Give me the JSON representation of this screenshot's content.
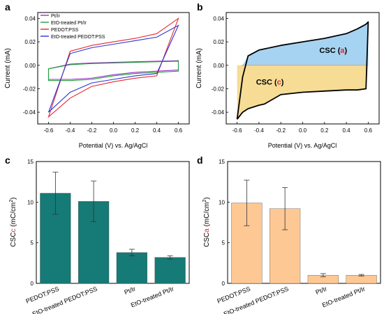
{
  "panels": [
    {
      "letter": "a"
    },
    {
      "letter": "b"
    },
    {
      "letter": "c"
    },
    {
      "letter": "d"
    }
  ],
  "colors": {
    "ptir": "#9b30c6",
    "eto_ptir": "#22a03a",
    "pedot": "#e8262b",
    "eto_pedot": "#2a35d8",
    "csc_anodic_fill": "#a6d3f2",
    "csc_cathodic_fill": "#f7dc95",
    "teal_bar": "#167a76",
    "peach_bar": "#fdc894",
    "red_letter": "#e8262b"
  },
  "chart_data": [
    {
      "type": "line",
      "panel": "a",
      "xlabel": "Potential (V) vs. Ag/AgCl",
      "ylabel": "Current (mA)",
      "xlim": [
        -0.7,
        0.7
      ],
      "ylim": [
        -0.05,
        0.045
      ],
      "xticks": [
        -0.6,
        -0.4,
        -0.2,
        0.0,
        0.2,
        0.4,
        0.6
      ],
      "xtick_labels": [
        "-0.6",
        "-0.4",
        "-0.2",
        "0.0",
        "0.2",
        "0.4",
        "0.6"
      ],
      "yticks": [
        -0.04,
        -0.02,
        0.0,
        0.02,
        0.04
      ],
      "ytick_labels": [
        "-0.04",
        "-0.02",
        "0.00",
        "0.02",
        "0.04"
      ],
      "legend_position": "top-left",
      "series": [
        {
          "name": "Pt/Ir",
          "color_key": "ptir",
          "forward_y": [
            -0.003,
            0.001,
            0.002,
            0.0025,
            0.003,
            0.0035,
            0.004
          ],
          "reverse_y": [
            -0.012,
            -0.012,
            -0.011,
            -0.008,
            -0.006,
            -0.005,
            -0.004
          ]
        },
        {
          "name": "EtO-treated Pt/Ir",
          "color_key": "eto_ptir",
          "forward_y": [
            -0.003,
            0.0005,
            0.0015,
            0.002,
            0.0025,
            0.003,
            0.0035
          ],
          "reverse_y": [
            -0.013,
            -0.013,
            -0.012,
            -0.009,
            -0.007,
            -0.006,
            -0.005
          ]
        },
        {
          "name": "PEDOT:PSS",
          "color_key": "pedot",
          "forward_y": [
            -0.044,
            0.012,
            0.017,
            0.02,
            0.023,
            0.027,
            0.04
          ],
          "reverse_y": [
            -0.044,
            -0.028,
            -0.018,
            -0.014,
            -0.011,
            -0.009,
            0.04
          ]
        },
        {
          "name": "EtO-treated PEDOT:PSS",
          "color_key": "eto_pedot",
          "forward_y": [
            -0.04,
            0.01,
            0.015,
            0.018,
            0.021,
            0.024,
            0.034
          ],
          "reverse_y": [
            -0.04,
            -0.023,
            -0.015,
            -0.012,
            -0.009,
            -0.007,
            0.034
          ]
        }
      ]
    },
    {
      "type": "area",
      "panel": "b",
      "xlabel": "Potential (V) vs. Ag/AgCl",
      "ylabel": "Current (mA)",
      "xlim": [
        -0.7,
        0.7
      ],
      "ylim": [
        -0.05,
        0.045
      ],
      "xticks": [
        -0.6,
        -0.4,
        -0.2,
        0.0,
        0.2,
        0.4,
        0.6
      ],
      "xtick_labels": [
        "-0.6",
        "-0.4",
        "-0.2",
        "0.0",
        "0.2",
        "0.4",
        "0.6"
      ],
      "yticks": [
        -0.04,
        -0.02,
        0.0,
        0.02,
        0.04
      ],
      "ytick_labels": [
        "-0.04",
        "-0.02",
        "0.00",
        "0.02",
        "0.04"
      ],
      "forward_x": [
        -0.6,
        -0.55,
        -0.5,
        -0.4,
        -0.2,
        0.0,
        0.2,
        0.4,
        0.5,
        0.58,
        0.6
      ],
      "forward_y": [
        -0.046,
        -0.01,
        0.008,
        0.013,
        0.017,
        0.02,
        0.023,
        0.027,
        0.031,
        0.035,
        0.037
      ],
      "reverse_x": [
        0.6,
        0.58,
        0.5,
        0.4,
        0.2,
        0.0,
        -0.2,
        -0.35,
        -0.4,
        -0.5,
        -0.55,
        -0.6
      ],
      "reverse_y": [
        0.037,
        -0.02,
        -0.021,
        -0.021,
        -0.022,
        -0.023,
        -0.025,
        -0.033,
        -0.034,
        -0.037,
        -0.04,
        -0.046
      ],
      "annotations": [
        {
          "prefix": "CSC (",
          "letter": "a",
          "suffix": ")",
          "x": 0.28,
          "y": 0.013
        },
        {
          "prefix": "CSC (",
          "letter": "c",
          "suffix": ")",
          "x": -0.3,
          "y": -0.014
        }
      ]
    },
    {
      "type": "bar",
      "panel": "c",
      "categories": [
        "PEDOT:PSS",
        "EtO-treated PEDOT:PSS",
        "Pt/Ir",
        "EtO-treated Pt/Ir"
      ],
      "values": [
        11.1,
        10.1,
        3.8,
        3.2
      ],
      "errors": [
        2.6,
        2.5,
        0.4,
        0.2
      ],
      "ylabel_prefix": "CSC",
      "ylabel_sub": "c",
      "ylabel_unit": " (mC/cm",
      "ylabel_sup": "2",
      "ylabel_end": ")",
      "ylim": [
        0,
        15
      ],
      "yticks": [
        0,
        5,
        10,
        15
      ],
      "ytick_labels": [
        "0",
        "5",
        "10",
        "15"
      ]
    },
    {
      "type": "bar",
      "panel": "d",
      "categories": [
        "PEDOT:PSS",
        "EtO-treated PEDOT:PSS",
        "Pt/Ir",
        "EtO-treated Pt/Ir"
      ],
      "values": [
        9.9,
        9.2,
        1.0,
        1.0
      ],
      "errors": [
        2.8,
        2.6,
        0.2,
        0.1
      ],
      "ylabel_prefix": "CSC",
      "ylabel_sub": "a",
      "ylabel_unit": " (mC/cm",
      "ylabel_sup": "2",
      "ylabel_end": ")",
      "ylim": [
        0,
        15
      ],
      "yticks": [
        0,
        5,
        10,
        15
      ],
      "ytick_labels": [
        "0",
        "5",
        "10",
        "15"
      ]
    }
  ]
}
